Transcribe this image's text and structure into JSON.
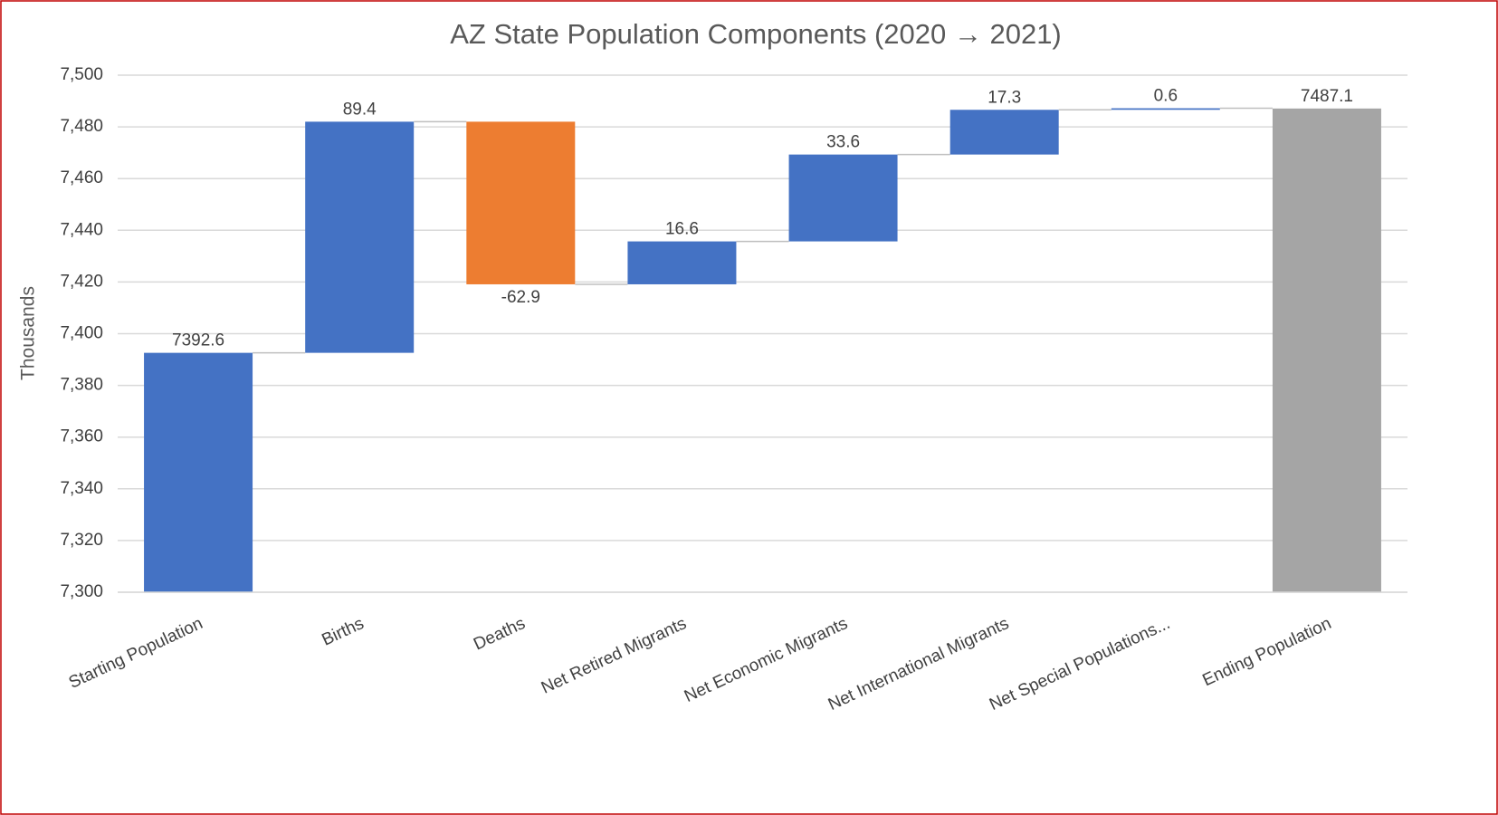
{
  "chart_data": {
    "type": "waterfall",
    "title": "AZ State Population Components (2020 → 2021)",
    "y_label": "Thousands",
    "categories": [
      "Starting Population",
      "Births",
      "Deaths",
      "Net Retired Migrants",
      "Net Economic Migrants",
      "Net International Migrants",
      "Net Special Populations...",
      "Ending Population"
    ],
    "values": [
      7392.6,
      89.4,
      -62.9,
      16.6,
      33.6,
      17.3,
      0.6,
      7487.1
    ],
    "totals": [
      false,
      false,
      false,
      false,
      false,
      false,
      false,
      true
    ],
    "increase_color": "#4472c4",
    "decrease_color": "#ed7d31",
    "total_color": "#a5a5a5",
    "ylim": [
      7300,
      7500
    ],
    "yticks": [
      {
        "value": 7300,
        "label": "7,300"
      },
      {
        "value": 7320,
        "label": "7,320"
      },
      {
        "value": 7340,
        "label": "7,340"
      },
      {
        "value": 7360,
        "label": "7,360"
      },
      {
        "value": 7380,
        "label": "7,380"
      },
      {
        "value": 7400,
        "label": "7,400"
      },
      {
        "value": 7420,
        "label": "7,420"
      },
      {
        "value": 7440,
        "label": "7,440"
      },
      {
        "value": 7460,
        "label": "7,460"
      },
      {
        "value": 7480,
        "label": "7,480"
      },
      {
        "value": 7500,
        "label": "7,500"
      }
    ],
    "grid": true
  }
}
